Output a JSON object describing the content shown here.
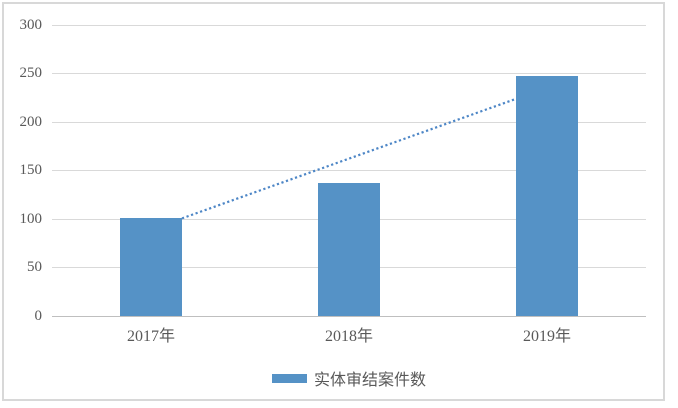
{
  "chart_data": {
    "type": "bar",
    "title": "",
    "categories": [
      "2017年",
      "2018年",
      "2019年"
    ],
    "series": [
      {
        "name": "实体审结案件数",
        "values": [
          101,
          137,
          248
        ]
      }
    ],
    "ylim": [
      0,
      300
    ],
    "yticks": [
      0,
      50,
      100,
      150,
      200,
      250,
      300
    ],
    "grid": true,
    "legend_position": "bottom",
    "trendline": {
      "style": "dotted",
      "description": "straight dotted segment from top-right corner of 2017 bar to left edge of 2019 bar",
      "start": {
        "category": "2017年",
        "value": 101,
        "anchor": "bar-top-right"
      },
      "end": {
        "category": "2019年",
        "value": 224,
        "anchor": "bar-top-left"
      }
    },
    "colors": {
      "bar": "#5592c6",
      "trendline": "#4d86c6",
      "gridline": "#d9d9d9",
      "axis_line": "#bfbfbf",
      "frame_border": "#d8d8d8",
      "label_text": "#595959"
    }
  }
}
